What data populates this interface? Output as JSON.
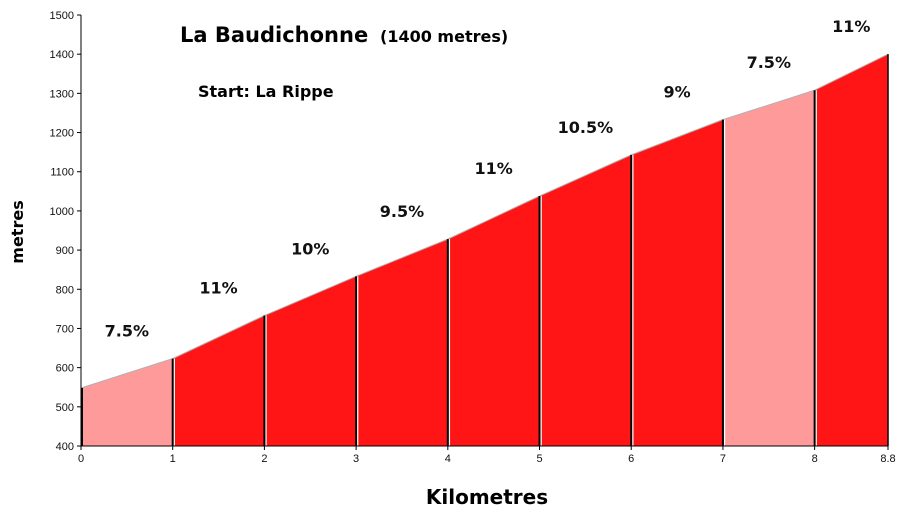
{
  "chart_data": {
    "type": "area",
    "title": "La Baudichonne",
    "subtitle": "(1400 metres)",
    "annotation": "Start: La Rippe",
    "xlabel": "Kilometres",
    "ylabel": "metres",
    "xlim": [
      0,
      8.8
    ],
    "ylim": [
      400,
      1500
    ],
    "x_ticks": [
      "0",
      "1",
      "2",
      "3",
      "4",
      "5",
      "6",
      "7",
      "8",
      "8.8"
    ],
    "y_ticks": [
      "400",
      "500",
      "600",
      "700",
      "800",
      "900",
      "1000",
      "1100",
      "1200",
      "1300",
      "1400",
      "1500"
    ],
    "grid": false,
    "x": [
      0,
      1,
      2,
      3,
      4,
      5,
      6,
      7,
      8,
      8.8
    ],
    "elevation": [
      548,
      623,
      733,
      833,
      928,
      1038,
      1143,
      1233,
      1308,
      1400
    ],
    "segments": [
      {
        "gradient": "7.5%",
        "color": "#ff9a9a"
      },
      {
        "gradient": "11%",
        "color": "#ff1515"
      },
      {
        "gradient": "10%",
        "color": "#ff1515"
      },
      {
        "gradient": "9.5%",
        "color": "#ff1515"
      },
      {
        "gradient": "11%",
        "color": "#ff1515"
      },
      {
        "gradient": "10.5%",
        "color": "#ff1515"
      },
      {
        "gradient": "9%",
        "color": "#ff1515"
      },
      {
        "gradient": "7.5%",
        "color": "#ff9a9a"
      },
      {
        "gradient": "11%",
        "color": "#ff1515"
      }
    ]
  }
}
